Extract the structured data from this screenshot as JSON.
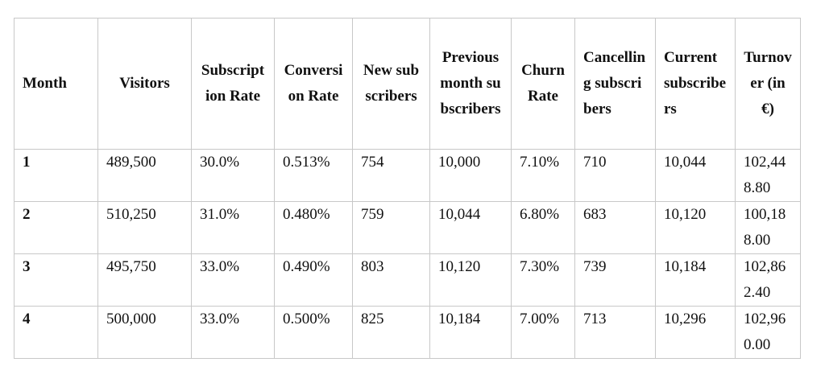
{
  "table": {
    "header": [
      "Month",
      "Visitors",
      "Subscription Rate",
      "Conversion Rate",
      "New subscribers",
      "Previous month subscribers",
      "Churn Rate",
      "Cancelling subscribers",
      "Current subscribers",
      "Turnover (in €)"
    ],
    "rows": [
      [
        "1",
        "489,500",
        "30.0%",
        "0.513%",
        "754",
        "10,000",
        "7.10%",
        "710",
        "10,044",
        "102,448.80"
      ],
      [
        "2",
        "510,250",
        "31.0%",
        "0.480%",
        "759",
        "10,044",
        "6.80%",
        "683",
        "10,120",
        "100,188.00"
      ],
      [
        "3",
        "495,750",
        "33.0%",
        "0.490%",
        "803",
        "10,120",
        "7.30%",
        "739",
        "10,184",
        "102,862.40"
      ],
      [
        "4",
        "500,000",
        "33.0%",
        "0.500%",
        "825",
        "10,184",
        "7.00%",
        "713",
        "10,296",
        "102,960.00"
      ]
    ]
  }
}
